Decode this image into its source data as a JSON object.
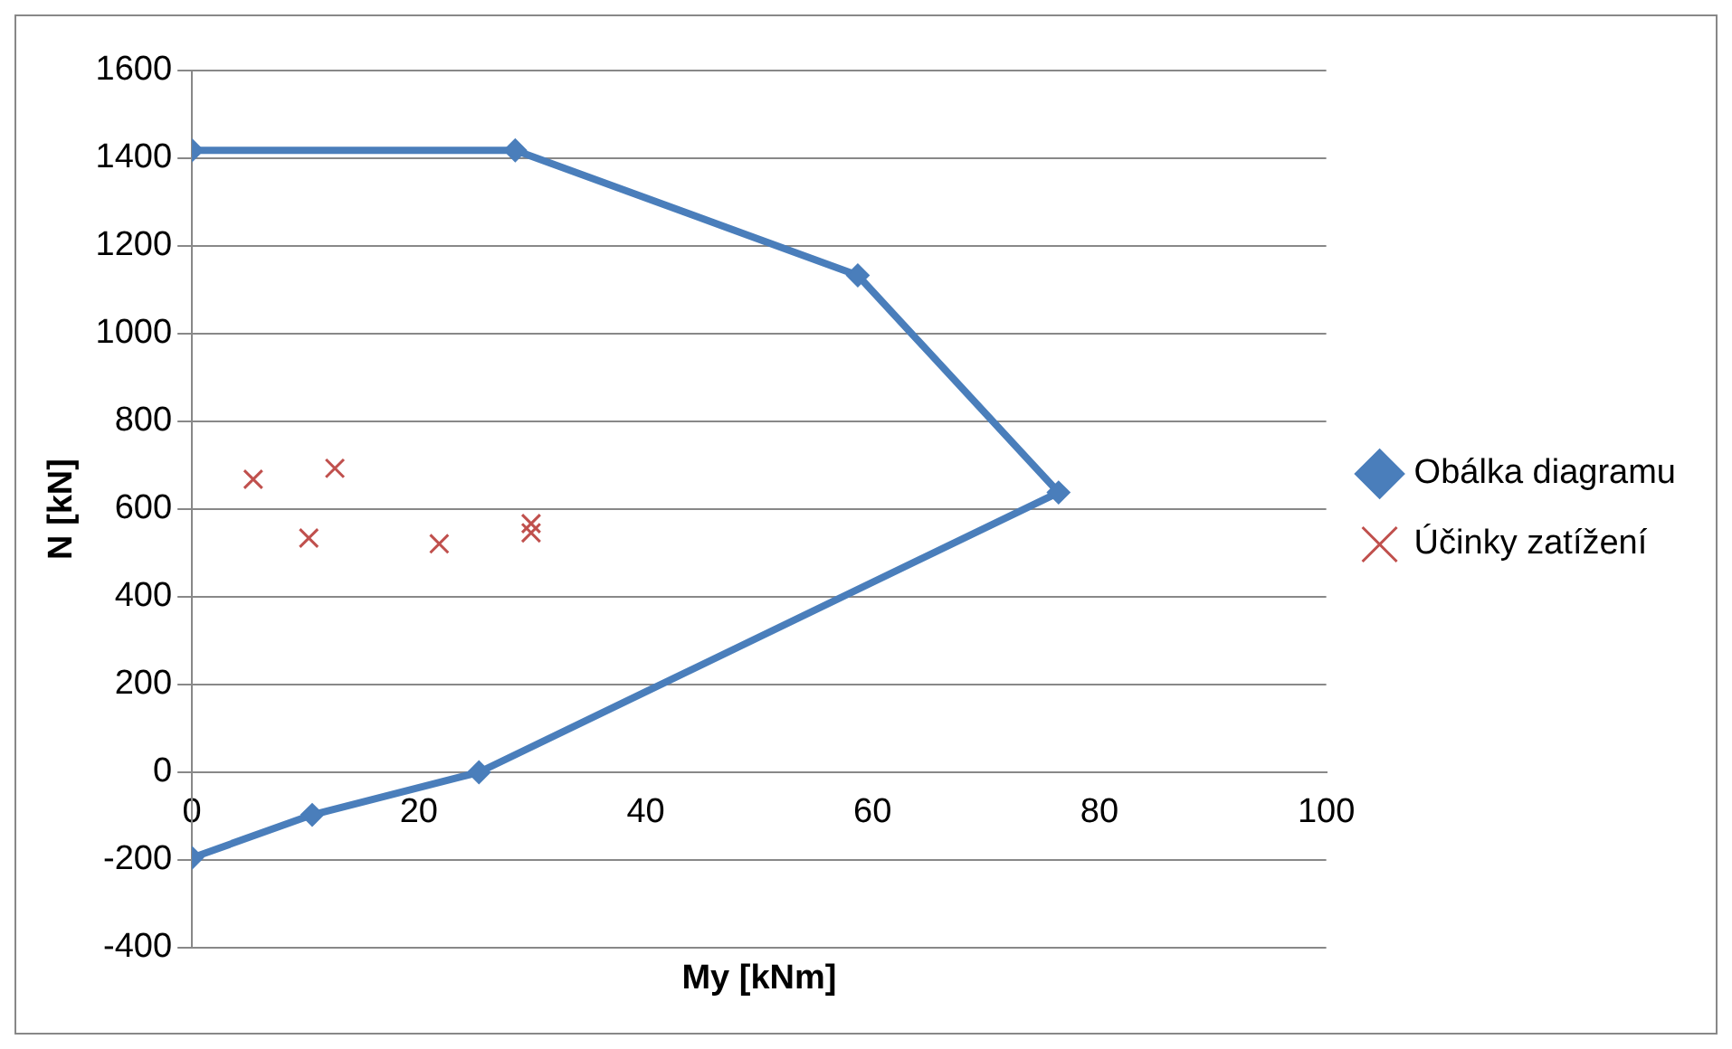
{
  "chart_data": {
    "type": "scatter",
    "xlabel": "My [kNm]",
    "ylabel": "N [kN]",
    "xlim": [
      0,
      100
    ],
    "xticks": [
      0,
      20,
      40,
      60,
      80,
      100
    ],
    "ylim": [
      -400,
      1600
    ],
    "yticks": [
      -400,
      -200,
      0,
      200,
      400,
      600,
      800,
      1000,
      1200,
      1400,
      1600
    ],
    "grid": "y",
    "legend": "right",
    "series": [
      {
        "name": "Obálka diagramu",
        "type": "line",
        "color": "#4a7ebb",
        "marker": "diamond",
        "line_style": "solid",
        "x": [
          0,
          28.5,
          58.7,
          76.4,
          25.3,
          10.6,
          0
        ],
        "values": [
          1418,
          1418,
          1133,
          638,
          0,
          -97,
          -195
        ]
      },
      {
        "name": "Účinky zatížení",
        "type": "scatter",
        "color": "#c0504d",
        "marker": "cross",
        "x": [
          5.4,
          12.6,
          10.3,
          21.8,
          29.9,
          29.9
        ],
        "values": [
          668,
          693,
          534,
          521,
          567,
          546
        ]
      }
    ]
  }
}
